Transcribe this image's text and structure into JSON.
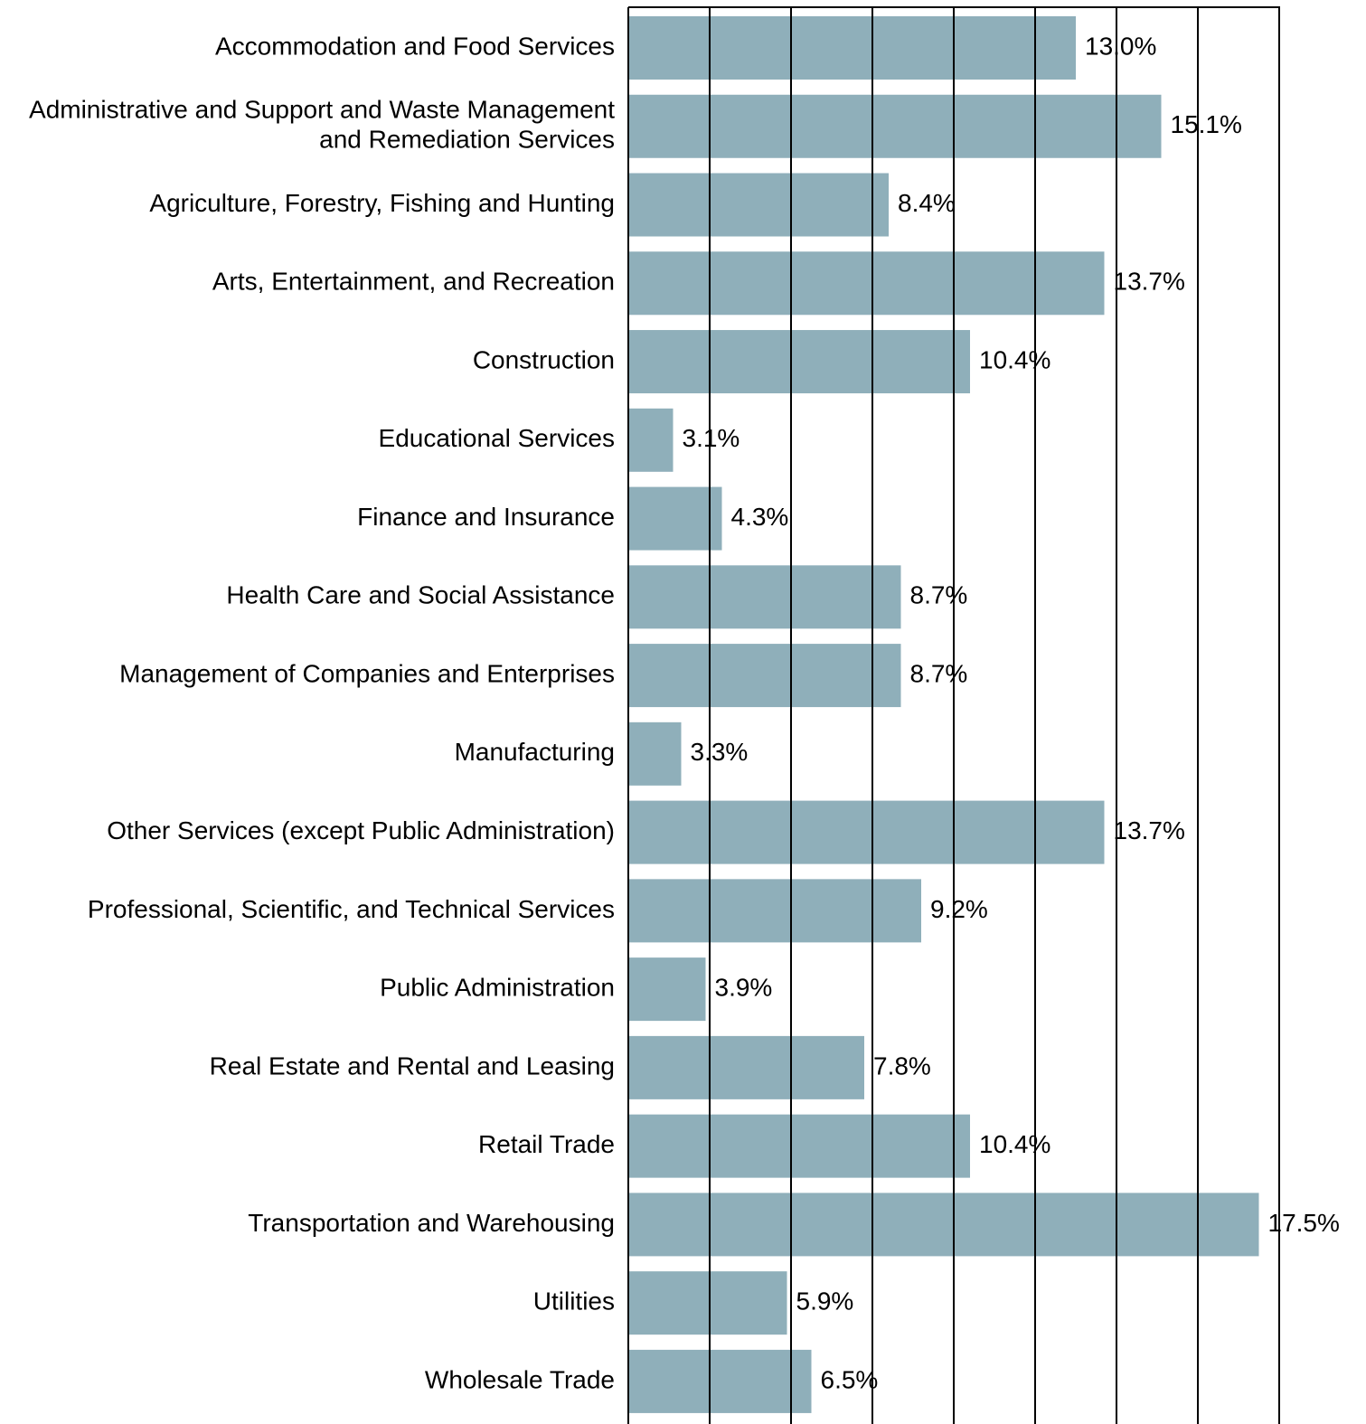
{
  "chart_data": {
    "type": "barh",
    "categories": [
      "Accommodation and Food Services",
      "Administrative and Support and Waste Management\nand Remediation Services",
      "Agriculture, Forestry, Fishing and Hunting",
      "Arts, Entertainment, and Recreation",
      "Construction",
      "Educational Services",
      "Finance and Insurance",
      "Health Care and Social Assistance",
      "Management of Companies and Enterprises",
      "Manufacturing",
      "Other Services (except Public Administration)",
      "Professional, Scientific, and Technical Services",
      "Public Administration",
      "Real Estate and Rental and Leasing",
      "Retail Trade",
      "Transportation and Warehousing",
      "Utilities",
      "Wholesale Trade"
    ],
    "values": [
      13.0,
      15.1,
      8.4,
      13.7,
      10.4,
      3.1,
      4.3,
      8.7,
      8.7,
      3.3,
      13.7,
      9.2,
      3.9,
      7.8,
      10.4,
      17.5,
      5.9,
      6.5
    ],
    "value_labels": [
      "13.0%",
      "15.1%",
      "8.4%",
      "13.7%",
      "10.4%",
      "3.1%",
      "4.3%",
      "8.7%",
      "8.7%",
      "3.3%",
      "13.7%",
      "9.2%",
      "3.9%",
      "7.8%",
      "10.4%",
      "17.5%",
      "5.9%",
      "6.5%"
    ],
    "color": "#8fafba",
    "xlim": [
      2,
      18
    ],
    "xticks": [
      2,
      4,
      6,
      8,
      10,
      12,
      14,
      16,
      18
    ],
    "grid": true
  }
}
